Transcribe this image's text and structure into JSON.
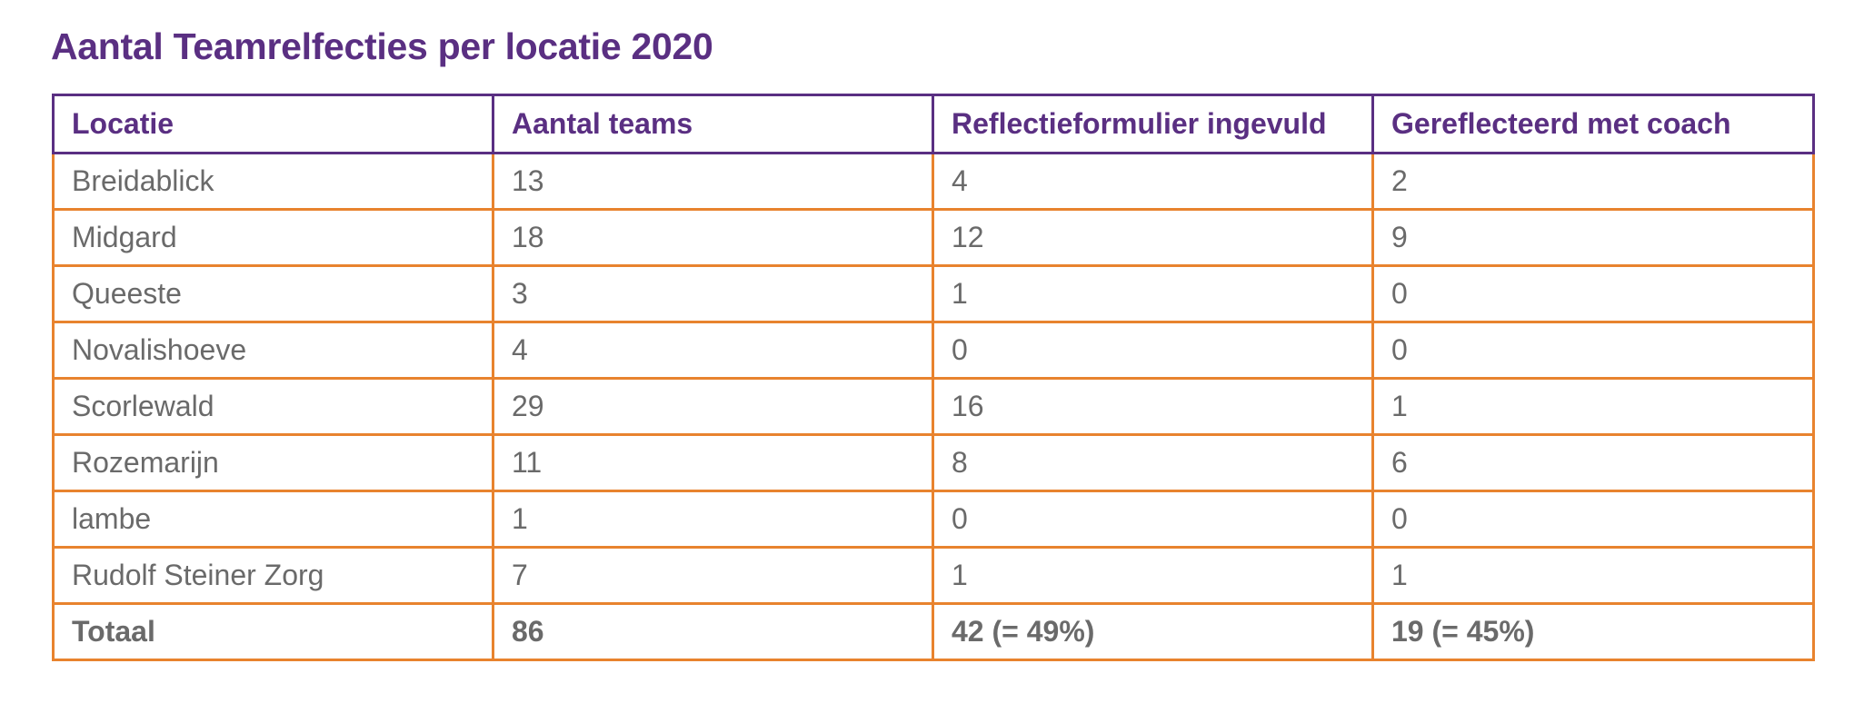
{
  "title": "Aantal Teamrelfecties per locatie 2020",
  "colors": {
    "header_text": "#5a2f82",
    "header_border": "#5a2f82",
    "body_border": "#e8832e",
    "body_text": "#6a6a6a"
  },
  "table": {
    "headers": [
      "Locatie",
      "Aantal teams",
      "Reflectieformulier ingevuld",
      "Gereflecteerd met coach"
    ],
    "rows": [
      [
        "Breidablick",
        "13",
        "4",
        "2"
      ],
      [
        "Midgard",
        "18",
        "12",
        "9"
      ],
      [
        "Queeste",
        "3",
        "1",
        "0"
      ],
      [
        "Novalishoeve",
        "4",
        "0",
        "0"
      ],
      [
        "Scorlewald",
        "29",
        "16",
        "1"
      ],
      [
        "Rozemarijn",
        "11",
        "8",
        "6"
      ],
      [
        "lambe",
        "1",
        "0",
        "0"
      ],
      [
        "Rudolf Steiner Zorg",
        "7",
        "1",
        "1"
      ]
    ],
    "total": [
      "Totaal",
      "86",
      "42 (= 49%)",
      "19 (= 45%)"
    ]
  }
}
